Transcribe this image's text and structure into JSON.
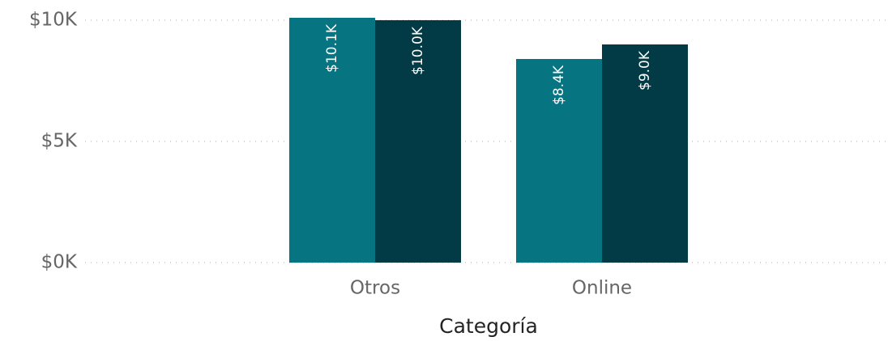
{
  "chart_data": {
    "type": "bar",
    "x_label": "Categoría",
    "categories": [
      "Otros",
      "Online"
    ],
    "series": [
      {
        "color": "#077481",
        "values": [
          10100,
          8400
        ],
        "value_labels": [
          "$10.1K",
          "$8.4K"
        ]
      },
      {
        "color": "#023b45",
        "values": [
          10000,
          9000
        ],
        "value_labels": [
          "$10.0K",
          "$9.0K"
        ]
      }
    ],
    "ylim": [
      0,
      10000
    ],
    "yticks": [
      {
        "value": 0,
        "label": "$0K"
      },
      {
        "value": 5000,
        "label": "$5K"
      },
      {
        "value": 10000,
        "label": "$10K"
      }
    ],
    "grid": true
  }
}
